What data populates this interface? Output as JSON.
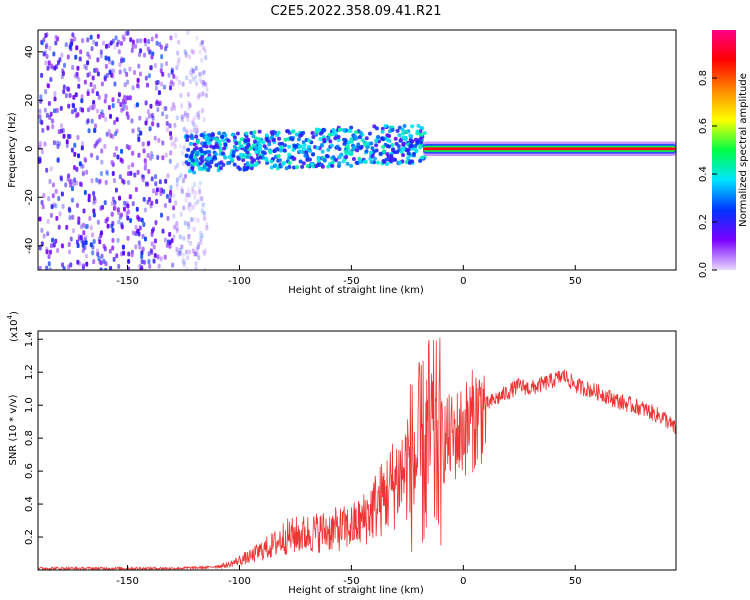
{
  "figure": {
    "title": "C2E5.2022.358.09.41.R21"
  },
  "chart_data": [
    {
      "type": "heatmap",
      "title": "C2E5.2022.358.09.41.R21",
      "xlabel": "Height of straight line (km)",
      "ylabel": "Frequency (Hz)",
      "xlim": [
        -190,
        95
      ],
      "ylim": [
        -50,
        49
      ],
      "xticks": [
        -150,
        -100,
        -50,
        0,
        50
      ],
      "yticks": [
        -40,
        -20,
        0,
        20,
        40
      ],
      "colorbar": {
        "label": "Normalized spectral amplitude",
        "range": [
          0,
          1
        ],
        "ticks": [
          0.0,
          0.2,
          0.4,
          0.6,
          0.8
        ],
        "colormap": [
          "#e8d8ff",
          "#7a00ff",
          "#0033ff",
          "#00e5ff",
          "#00ff44",
          "#ffff00",
          "#ff8800",
          "#ff0000",
          "#ff0088"
        ]
      },
      "description": [
        {
          "region": "noise",
          "x_range": [
            -190,
            -115
          ],
          "freq_range": [
            -50,
            49
          ],
          "amplitude_range": [
            0.05,
            0.2
          ]
        },
        {
          "region": "scattered-echo",
          "x_range": [
            -125,
            -18
          ],
          "center_freq": 0,
          "width_hz": 10,
          "amplitude_range": [
            0.15,
            0.45
          ]
        },
        {
          "region": "strong-signal",
          "x_range": [
            -18,
            95
          ],
          "center_freq": 0,
          "width_hz": 4,
          "amplitude_range": [
            0.5,
            1.0
          ]
        }
      ]
    },
    {
      "type": "line",
      "xlabel": "Height of straight line (km)",
      "ylabel": "SNR (10 * v/v)",
      "y_scale_label": "(x10",
      "y_scale_exp": "4",
      "xlim": [
        -190,
        95
      ],
      "ylim": [
        0,
        1.45
      ],
      "xticks": [
        -150,
        -100,
        -50,
        0,
        50
      ],
      "yticks": [
        0.2,
        0.4,
        0.6,
        0.8,
        1.0,
        1.2,
        1.4
      ],
      "line_color": "#ee3333",
      "series": [
        {
          "name": "SNR",
          "x": [
            -190,
            -160,
            -130,
            -115,
            -105,
            -100,
            -95,
            -90,
            -85,
            -80,
            -70,
            -60,
            -50,
            -45,
            -40,
            -35,
            -30,
            -25,
            -20,
            -17,
            -15,
            -13,
            -10,
            -5,
            0,
            5,
            10,
            20,
            25,
            30,
            40,
            45,
            50,
            60,
            70,
            80,
            90,
            95
          ],
          "values": [
            0.01,
            0.01,
            0.01,
            0.015,
            0.03,
            0.06,
            0.08,
            0.12,
            0.15,
            0.2,
            0.22,
            0.24,
            0.26,
            0.3,
            0.38,
            0.45,
            0.55,
            0.62,
            0.68,
            0.72,
            0.8,
            0.75,
            0.78,
            0.8,
            0.85,
            0.92,
            1.0,
            1.08,
            1.12,
            1.1,
            1.15,
            1.18,
            1.12,
            1.08,
            1.02,
            0.98,
            0.92,
            0.85
          ]
        }
      ]
    }
  ]
}
